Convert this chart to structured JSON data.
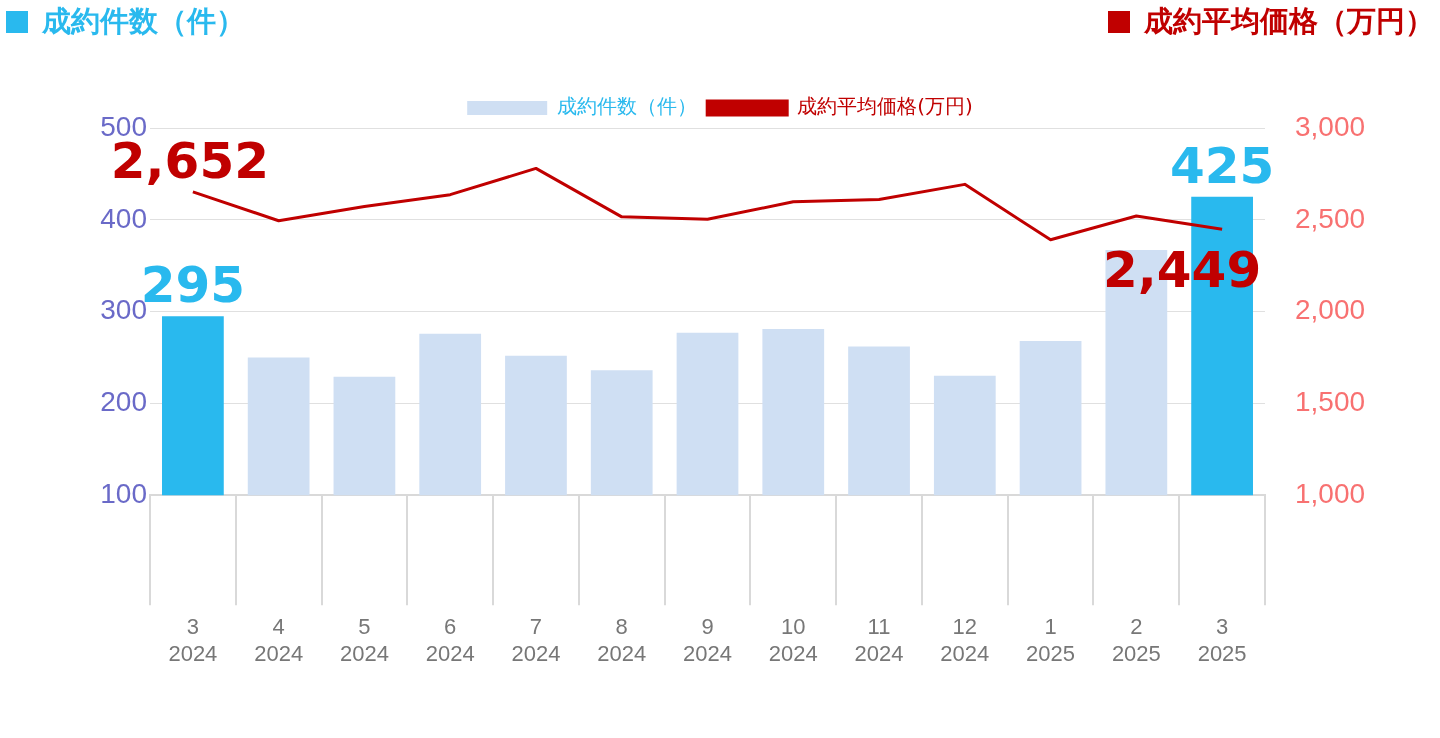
{
  "chart_data": {
    "type": "bar",
    "ylabel": "成約件数（件）",
    "y2label": "成約平均価格（万円）",
    "categories": [
      "3\n2024",
      "4\n2024",
      "5\n2024",
      "6\n2024",
      "7\n2024",
      "8\n2024",
      "9\n2024",
      "10\n2024",
      "11\n2024",
      "12\n2024",
      "1\n2025",
      "2\n2025",
      "3\n2025"
    ],
    "series": [
      {
        "name": "成約件数（件）",
        "color": "#cfdff3",
        "colors": [
          "#29b9ee",
          "#cfdff3",
          "#cfdff3",
          "#cfdff3",
          "#cfdff3",
          "#cfdff3",
          "#cfdff3",
          "#cfdff3",
          "#cfdff3",
          "#cfdff3",
          "#cfdff3",
          "#cfdff3",
          "#29b9ee"
        ],
        "values": [
          295,
          250,
          229,
          276,
          252,
          236,
          277,
          281,
          262,
          230,
          268,
          367,
          425
        ],
        "value_labels": [
          "295",
          null,
          null,
          null,
          null,
          null,
          null,
          null,
          null,
          null,
          null,
          null,
          "425"
        ]
      },
      {
        "name": "成約平均価格(万円)",
        "type": "line",
        "axis": "y2",
        "color": "#c00000",
        "values": [
          2652,
          2495,
          2572,
          2637,
          2780,
          2516,
          2503,
          2598,
          2611,
          2693,
          2391,
          2521,
          2449
        ],
        "value_labels": [
          "2,652",
          null,
          null,
          null,
          null,
          null,
          null,
          null,
          null,
          null,
          null,
          null,
          "2,449"
        ]
      }
    ],
    "ylim": [
      100,
      500
    ],
    "yticks": [
      100,
      200,
      300,
      400,
      500
    ],
    "y2lim": [
      1000,
      3000
    ],
    "y2ticks": [
      {
        "value": 1000,
        "label": "1,000"
      },
      {
        "value": 1500,
        "label": "1,500"
      },
      {
        "value": 2000,
        "label": "2,000"
      },
      {
        "value": 2500,
        "label": "2,500"
      },
      {
        "value": 3000,
        "label": "3,000"
      }
    ],
    "grid": "y",
    "legend": "top",
    "marker": "none",
    "line_style": "solid"
  }
}
